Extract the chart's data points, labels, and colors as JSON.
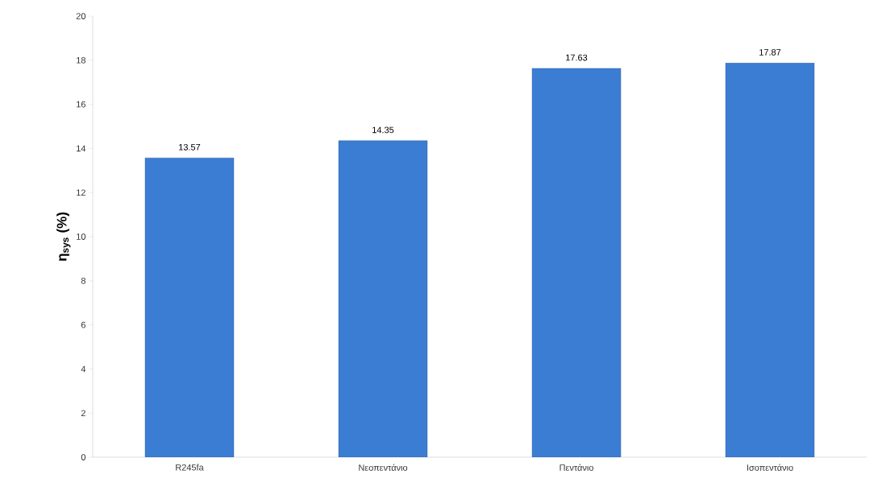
{
  "chart_data": {
    "type": "bar",
    "ylabel": "η$_{sys}$ (%)",
    "categories": [
      "R245fa",
      "Νεοπεντάνιο",
      "Πεντάνιο",
      "Ισοπεντάνιο"
    ],
    "values": [
      13.57,
      14.35,
      17.63,
      17.87
    ],
    "color": "#3c7dd4",
    "ylim": [
      0,
      20
    ],
    "yticks": [
      0,
      2,
      4,
      6,
      8,
      10,
      12,
      14,
      16,
      18,
      20
    ],
    "grid": false,
    "data_labels": true
  }
}
